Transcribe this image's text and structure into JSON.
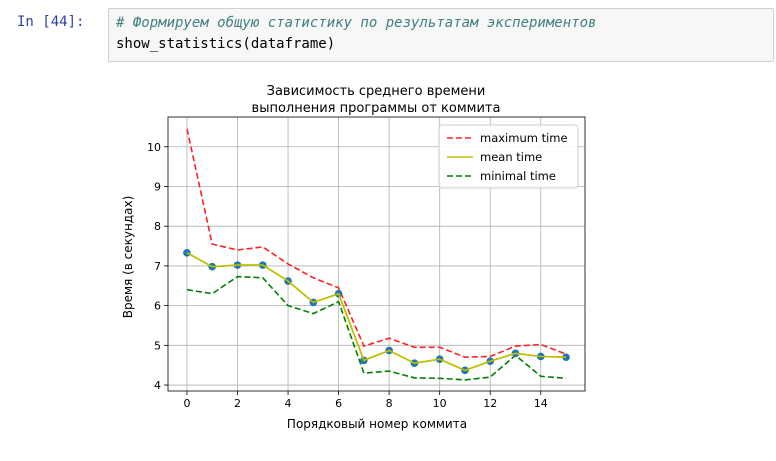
{
  "cell": {
    "prompt": "In [44]:",
    "code_lines": [
      "# Формируем общую статистику по результатам экспериментов",
      "show_statistics(dataframe)"
    ]
  },
  "chart_data": {
    "type": "line",
    "title_lines": [
      "Зависимость среднего времени",
      "выполнения программы от коммита"
    ],
    "xlabel": "Порядковый номер коммита",
    "ylabel": "Время (в секундах)",
    "xlim": [
      -0.75,
      15.75
    ],
    "ylim": [
      3.85,
      10.75
    ],
    "xticks": [
      0,
      2,
      4,
      6,
      8,
      10,
      12,
      14
    ],
    "yticks": [
      4,
      5,
      6,
      7,
      8,
      9,
      10
    ],
    "grid": true,
    "legend_position": "top-right",
    "x": [
      0,
      1,
      2,
      3,
      4,
      5,
      6,
      7,
      8,
      9,
      10,
      11,
      12,
      13,
      14,
      15
    ],
    "series": [
      {
        "name": "maximum time",
        "color": "#ff2020",
        "style": "dashed",
        "values": [
          10.45,
          7.55,
          7.4,
          7.48,
          7.05,
          6.7,
          6.45,
          4.98,
          5.18,
          4.95,
          4.95,
          4.7,
          4.72,
          4.98,
          5.02,
          4.78
        ]
      },
      {
        "name": "mean time",
        "color": "#bfbf00",
        "style": "solid",
        "values": [
          7.33,
          6.98,
          7.02,
          7.02,
          6.62,
          6.08,
          6.3,
          4.62,
          4.87,
          4.55,
          4.65,
          4.37,
          4.6,
          4.8,
          4.72,
          4.7
        ]
      },
      {
        "name": "minimal time",
        "color": "#008000",
        "style": "dashed",
        "values": [
          6.4,
          6.3,
          6.73,
          6.7,
          6.0,
          5.8,
          6.1,
          4.3,
          4.35,
          4.18,
          4.17,
          4.13,
          4.2,
          4.75,
          4.22,
          4.17
        ]
      }
    ],
    "scatter": {
      "color": "#1f77b4",
      "values": [
        7.33,
        6.98,
        7.02,
        7.02,
        6.62,
        6.08,
        6.3,
        4.62,
        4.87,
        4.55,
        4.65,
        4.37,
        4.6,
        4.8,
        4.72,
        4.7
      ]
    }
  }
}
